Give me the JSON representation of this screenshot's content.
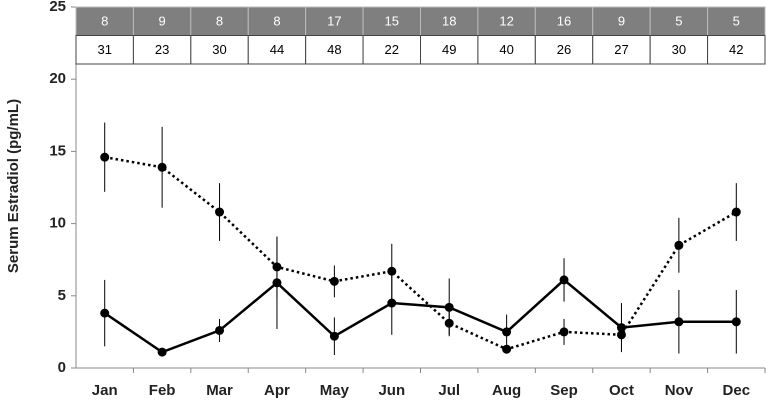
{
  "chart_data": {
    "type": "line",
    "ylabel": "Serum Estradiol (pg/mL)",
    "categories": [
      "Jan",
      "Feb",
      "Mar",
      "Apr",
      "May",
      "Jun",
      "Jul",
      "Aug",
      "Sep",
      "Oct",
      "Nov",
      "Dec"
    ],
    "series": [
      {
        "color": "#000000",
        "line_style": "dotted",
        "values": [
          14.6,
          13.9,
          10.8,
          7.0,
          6.0,
          6.7,
          3.1,
          1.3,
          2.5,
          2.3,
          8.5,
          10.8
        ],
        "errors": [
          2.4,
          2.8,
          2.0,
          2.1,
          1.1,
          1.9,
          0.8,
          0.3,
          0.9,
          0.5,
          1.9,
          2.0
        ]
      },
      {
        "color": "#000000",
        "line_style": "solid",
        "values": [
          3.8,
          1.1,
          2.6,
          5.9,
          2.2,
          4.5,
          4.2,
          2.5,
          6.1,
          2.8,
          3.2,
          3.2
        ],
        "errors": [
          2.3,
          0.1,
          0.8,
          3.2,
          1.3,
          2.2,
          2.0,
          1.2,
          1.5,
          1.7,
          2.2,
          2.2
        ]
      }
    ],
    "table": {
      "rows": [
        [
          8,
          9,
          8,
          8,
          17,
          15,
          18,
          12,
          16,
          9,
          5,
          5
        ],
        [
          31,
          23,
          30,
          44,
          48,
          22,
          49,
          40,
          26,
          27,
          30,
          42
        ]
      ]
    },
    "ylim": [
      0,
      25
    ],
    "yticks": [
      0,
      5,
      10,
      15,
      20,
      25
    ],
    "grid": false
  }
}
